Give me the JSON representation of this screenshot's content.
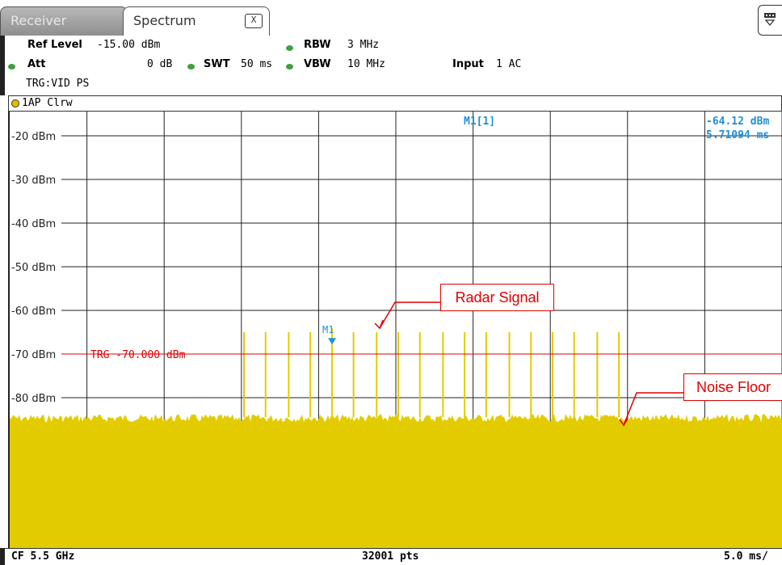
{
  "tabs": [
    {
      "label": "Receiver"
    },
    {
      "label": "Spectrum"
    }
  ],
  "tab_close_label": "X",
  "header": {
    "ref_level_label": "Ref Level",
    "ref_level_value": "-15.00 dBm",
    "att_label": "Att",
    "att_value": "0 dB",
    "swt_label": "SWT",
    "swt_value": "50 ms",
    "rbw_label": "RBW",
    "rbw_value": "3 MHz",
    "vbw_label": "VBW",
    "vbw_value": "10 MHz",
    "input_label": "Input",
    "input_value": "1 AC",
    "trigger": "TRG:VID PS"
  },
  "trace_label": "1AP Clrw",
  "marker": {
    "name": "M1",
    "readout_label": "M1[1]",
    "readout_level": "-64.12 dBm",
    "readout_time": "5.71094 ms"
  },
  "trigger_line_label": "TRG  -70.000 dBm",
  "annotations": {
    "radar": "Radar Signal",
    "noise": "Noise Floor"
  },
  "footer": {
    "center": "CF 5.5 GHz",
    "points": "32001 pts",
    "scale": "5.0 ms/"
  },
  "colors": {
    "trace": "#e2cc00",
    "trigger": "#e00000",
    "marker": "#1e90d8",
    "status_led": "#40a040"
  },
  "chart_data": {
    "type": "line",
    "ylabel": "",
    "xlabel": "",
    "y_ticks": [
      "-20 dBm",
      "-30 dBm",
      "-40 dBm",
      "-50 dBm",
      "-60 dBm",
      "-70 dBm",
      "-80 dBm"
    ],
    "ylim": [
      -110,
      -15
    ],
    "xlim_ms": [
      0,
      50
    ],
    "noise_floor_dbm": -84.5,
    "trigger_level_dbm": -70.0,
    "marker": {
      "time_ms": 5.71094,
      "level_dbm": -64.12
    },
    "pulses": [
      {
        "t_ms": 0.0,
        "level_dbm": -65
      },
      {
        "t_ms": 1.4,
        "level_dbm": -65
      },
      {
        "t_ms": 2.9,
        "level_dbm": -65
      },
      {
        "t_ms": 4.3,
        "level_dbm": -65
      },
      {
        "t_ms": 5.71,
        "level_dbm": -64.1
      },
      {
        "t_ms": 7.1,
        "level_dbm": -65
      },
      {
        "t_ms": 8.6,
        "level_dbm": -65
      },
      {
        "t_ms": 10.0,
        "level_dbm": -65
      },
      {
        "t_ms": 11.4,
        "level_dbm": -65
      },
      {
        "t_ms": 12.9,
        "level_dbm": -65
      },
      {
        "t_ms": 14.3,
        "level_dbm": -65
      },
      {
        "t_ms": 15.7,
        "level_dbm": -65
      },
      {
        "t_ms": 17.2,
        "level_dbm": -65
      },
      {
        "t_ms": 18.6,
        "level_dbm": -65
      },
      {
        "t_ms": 20.0,
        "level_dbm": -65
      },
      {
        "t_ms": 21.4,
        "level_dbm": -65
      },
      {
        "t_ms": 22.9,
        "level_dbm": -65
      },
      {
        "t_ms": 24.3,
        "level_dbm": -65
      }
    ]
  }
}
